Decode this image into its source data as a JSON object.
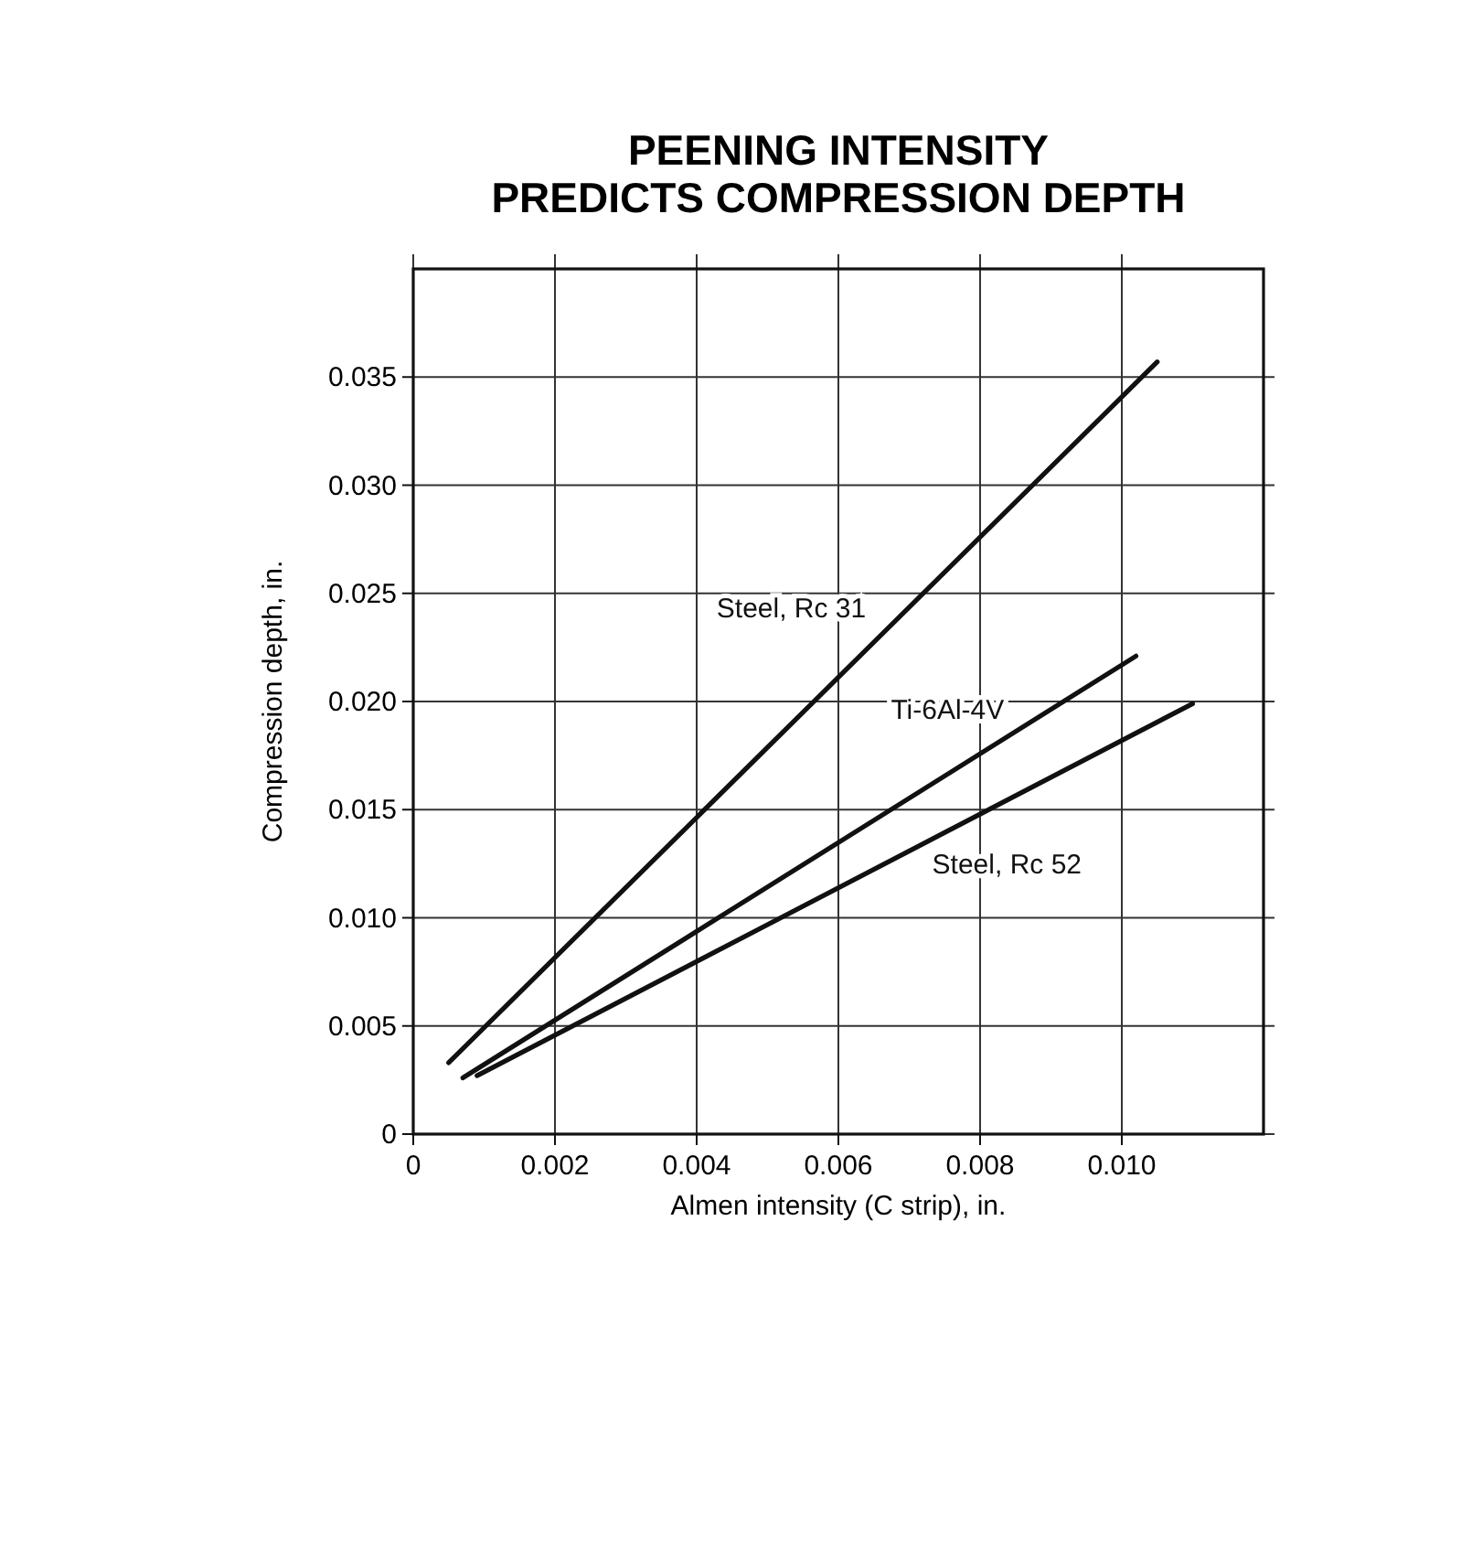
{
  "chart_data": {
    "type": "line",
    "title": "PEENING INTENSITY\nPREDICTS COMPRESSION DEPTH",
    "xlabel": "Almen intensity (C strip), in.",
    "ylabel": "Compression depth, in.",
    "series": [
      {
        "name": "Steel, Rc 31",
        "color": "#111111",
        "x": [
          0.0005,
          0.0105
        ],
        "values": [
          0.0033,
          0.0357
        ]
      },
      {
        "name": "Ti-6Al-4V",
        "color": "#111111",
        "x": [
          0.0007,
          0.0102
        ],
        "values": [
          0.0026,
          0.0221
        ]
      },
      {
        "name": "Steel, Rc 52",
        "color": "#111111",
        "x": [
          0.0009,
          0.011
        ],
        "values": [
          0.0027,
          0.0199
        ]
      }
    ],
    "xlim": [
      0,
      0.012
    ],
    "ylim": [
      0,
      0.04
    ],
    "xticks": [
      0,
      0.002,
      0.004,
      0.006,
      {
        "value": 0.008,
        "label": "0.008"
      },
      {
        "value": 0.01,
        "label": "0.010"
      }
    ],
    "yticks": [
      0,
      0.005,
      {
        "value": 0.01,
        "label": "0.010"
      },
      0.015,
      {
        "value": 0.02,
        "label": "0.020"
      },
      0.025,
      {
        "value": 0.03,
        "label": "0.030"
      },
      0.035
    ],
    "grid": true,
    "legend": false,
    "marker": "none",
    "line_style": "solid"
  }
}
